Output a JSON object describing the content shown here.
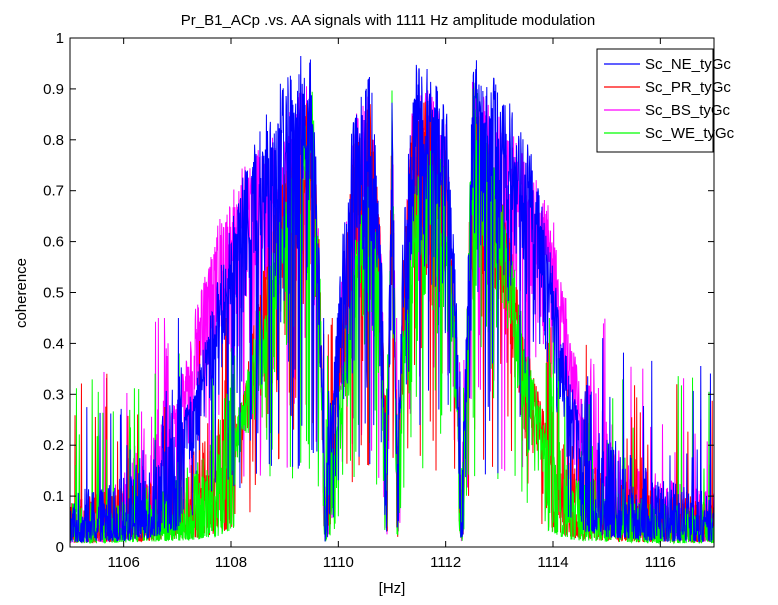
{
  "chart_data": {
    "type": "line",
    "title": "Pr_B1_ACp  .vs.  AA signals with 1111 Hz amplitude modulation",
    "xlabel": "[Hz]",
    "ylabel": "coherence",
    "xlim": [
      1105,
      1117
    ],
    "ylim": [
      0,
      1
    ],
    "xticks": [
      1106,
      1108,
      1110,
      1112,
      1114,
      1116
    ],
    "yticks": [
      0,
      0.1,
      0.2,
      0.3,
      0.4,
      0.5,
      0.6,
      0.7,
      0.8,
      0.9,
      1
    ],
    "xtick_labels": [
      "1106",
      "1108",
      "1110",
      "1112",
      "1114",
      "1116"
    ],
    "ytick_labels": [
      "0",
      "0.1",
      "0.2",
      "0.3",
      "0.4",
      "0.5",
      "0.6",
      "0.7",
      "0.8",
      "0.9",
      "1"
    ],
    "grid": false,
    "legend_position": "top-right",
    "series": [
      {
        "name": "Sc_NE_tyGc",
        "color": "#0000ff",
        "envelope": {
          "x": [
            1105,
            1105.5,
            1106,
            1106.5,
            1107,
            1107.4,
            1107.8,
            1108.2,
            1108.6,
            1109.0,
            1109.3,
            1109.5,
            1109.65,
            1109.75,
            1110.0,
            1110.3,
            1110.6,
            1110.8,
            1110.9,
            1111.0,
            1111.1,
            1111.2,
            1111.4,
            1111.7,
            1112.0,
            1112.2,
            1112.3,
            1112.5,
            1112.8,
            1113.2,
            1113.6,
            1114.0,
            1114.3,
            1114.6,
            1115.0,
            1115.5,
            1116.0,
            1116.5,
            1117
          ],
          "y": [
            0.06,
            0.07,
            0.08,
            0.12,
            0.22,
            0.35,
            0.55,
            0.72,
            0.85,
            0.93,
            0.97,
            0.96,
            0.6,
            0.05,
            0.5,
            0.9,
            0.95,
            0.6,
            0.1,
            0.93,
            0.1,
            0.6,
            0.95,
            0.95,
            0.9,
            0.5,
            0.05,
            0.97,
            0.94,
            0.88,
            0.78,
            0.55,
            0.35,
            0.2,
            0.13,
            0.1,
            0.08,
            0.07,
            0.06
          ]
        }
      },
      {
        "name": "Sc_PR_tyGc",
        "color": "#ff0000",
        "envelope": {
          "x": [
            1105,
            1105.5,
            1106,
            1106.5,
            1107,
            1107.4,
            1107.8,
            1108.2,
            1108.6,
            1109.0,
            1109.3,
            1109.5,
            1109.65,
            1109.75,
            1110.0,
            1110.3,
            1110.6,
            1110.8,
            1110.9,
            1111.0,
            1111.1,
            1111.2,
            1111.4,
            1111.7,
            1112.0,
            1112.2,
            1112.3,
            1112.5,
            1112.8,
            1113.2,
            1113.6,
            1114.0,
            1114.3,
            1114.6,
            1115.0,
            1115.5,
            1116.0,
            1116.5,
            1117
          ],
          "y": [
            0.05,
            0.06,
            0.07,
            0.08,
            0.1,
            0.12,
            0.18,
            0.3,
            0.55,
            0.75,
            0.85,
            0.9,
            0.6,
            0.05,
            0.4,
            0.8,
            0.9,
            0.6,
            0.1,
            0.9,
            0.1,
            0.55,
            0.88,
            0.88,
            0.8,
            0.45,
            0.05,
            0.9,
            0.82,
            0.6,
            0.35,
            0.2,
            0.13,
            0.1,
            0.08,
            0.07,
            0.06,
            0.06,
            0.05
          ]
        }
      },
      {
        "name": "Sc_BS_tyGc",
        "color": "#ff00ff",
        "envelope": {
          "x": [
            1105,
            1105.5,
            1106,
            1106.5,
            1107,
            1107.4,
            1107.8,
            1108.2,
            1108.6,
            1109.0,
            1109.3,
            1109.5,
            1109.65,
            1109.75,
            1110.0,
            1110.3,
            1110.6,
            1110.8,
            1110.9,
            1111.0,
            1111.1,
            1111.2,
            1111.4,
            1111.7,
            1112.0,
            1112.2,
            1112.3,
            1112.5,
            1112.8,
            1113.2,
            1113.6,
            1114.0,
            1114.3,
            1114.6,
            1115.0,
            1115.5,
            1116.0,
            1116.5,
            1117
          ],
          "y": [
            0.05,
            0.06,
            0.09,
            0.15,
            0.3,
            0.5,
            0.65,
            0.75,
            0.8,
            0.85,
            0.9,
            0.92,
            0.6,
            0.05,
            0.45,
            0.85,
            0.9,
            0.6,
            0.1,
            0.95,
            0.1,
            0.55,
            0.9,
            0.9,
            0.85,
            0.45,
            0.05,
            0.92,
            0.88,
            0.82,
            0.75,
            0.65,
            0.45,
            0.25,
            0.15,
            0.1,
            0.08,
            0.07,
            0.06
          ]
        }
      },
      {
        "name": "Sc_WE_tyGc",
        "color": "#00ff00",
        "envelope": {
          "x": [
            1105,
            1105.5,
            1106,
            1106.5,
            1107,
            1107.4,
            1107.8,
            1108.2,
            1108.6,
            1109.0,
            1109.3,
            1109.5,
            1109.65,
            1109.75,
            1110.0,
            1110.3,
            1110.6,
            1110.8,
            1110.9,
            1111.0,
            1111.1,
            1111.2,
            1111.4,
            1111.7,
            1112.0,
            1112.2,
            1112.3,
            1112.5,
            1112.8,
            1113.2,
            1113.6,
            1114.0,
            1114.3,
            1114.6,
            1115.0,
            1115.5,
            1116.0,
            1116.5,
            1117
          ],
          "y": [
            0.05,
            0.05,
            0.06,
            0.07,
            0.08,
            0.1,
            0.15,
            0.3,
            0.5,
            0.7,
            0.85,
            0.93,
            0.6,
            0.05,
            0.3,
            0.6,
            0.75,
            0.5,
            0.08,
            0.9,
            0.08,
            0.45,
            0.7,
            0.8,
            0.75,
            0.4,
            0.05,
            0.93,
            0.82,
            0.6,
            0.35,
            0.18,
            0.1,
            0.08,
            0.07,
            0.06,
            0.05,
            0.05,
            0.05
          ]
        }
      }
    ]
  }
}
